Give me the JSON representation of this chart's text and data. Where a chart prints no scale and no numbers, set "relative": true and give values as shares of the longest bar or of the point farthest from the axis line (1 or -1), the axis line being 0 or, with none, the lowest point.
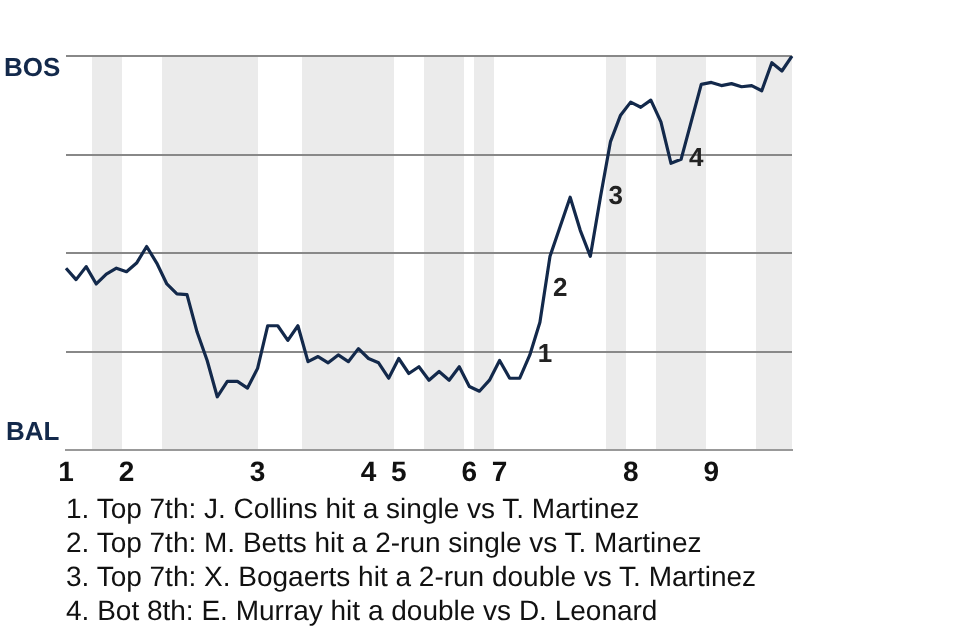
{
  "chart_data": {
    "type": "line",
    "relative": true,
    "categories": [
      "1",
      null,
      null,
      null,
      null,
      null,
      "2",
      null,
      null,
      null,
      null,
      null,
      null,
      null,
      null,
      null,
      null,
      null,
      null,
      "3",
      null,
      null,
      null,
      null,
      null,
      null,
      null,
      null,
      null,
      null,
      "4",
      null,
      null,
      "5",
      null,
      null,
      null,
      null,
      null,
      null,
      "6",
      null,
      null,
      "7",
      null,
      null,
      null,
      null,
      null,
      null,
      null,
      null,
      null,
      null,
      null,
      null,
      "8",
      null,
      null,
      null,
      null,
      null,
      null,
      null,
      "9",
      null,
      null,
      null,
      null,
      null,
      null,
      null,
      null
    ],
    "series": [
      {
        "color": "#13294b",
        "values": [
          0.462,
          0.433,
          0.466,
          0.422,
          0.447,
          0.462,
          0.453,
          0.475,
          0.517,
          0.475,
          0.422,
          0.397,
          0.395,
          0.3,
          0.228,
          0.136,
          0.175,
          0.175,
          0.158,
          0.208,
          0.316,
          0.316,
          0.279,
          0.316,
          0.225,
          0.238,
          0.222,
          0.242,
          0.225,
          0.258,
          0.233,
          0.222,
          0.183,
          0.233,
          0.195,
          0.212,
          0.178,
          0.2,
          0.178,
          0.212,
          0.162,
          0.15,
          0.178,
          0.228,
          0.183,
          0.183,
          0.242,
          0.325,
          0.492,
          0.567,
          0.642,
          0.558,
          0.492,
          0.642,
          0.783,
          0.85,
          0.883,
          0.87,
          0.888,
          0.833,
          0.728,
          0.738,
          0.833,
          0.928,
          0.933,
          0.925,
          0.93,
          0.922,
          0.925,
          0.912,
          0.983,
          0.962,
          1
        ]
      }
    ],
    "annotations": [
      "BOS",
      "BAL",
      "1",
      "2",
      "3",
      "4",
      "1. Top 7th: J. Collins hit a single vs T. Martinez",
      "2. Top 7th: M. Betts hit a 2-run single vs T. Martinez",
      "3. Top 7th: X. Bogaerts hit a 2-run double vs T. Martinez",
      "4. Bot 8th: E. Murray hit a double vs D. Leonard"
    ],
    "grid": "y",
    "legend": false,
    "marker": "none",
    "line_style": "solid"
  }
}
